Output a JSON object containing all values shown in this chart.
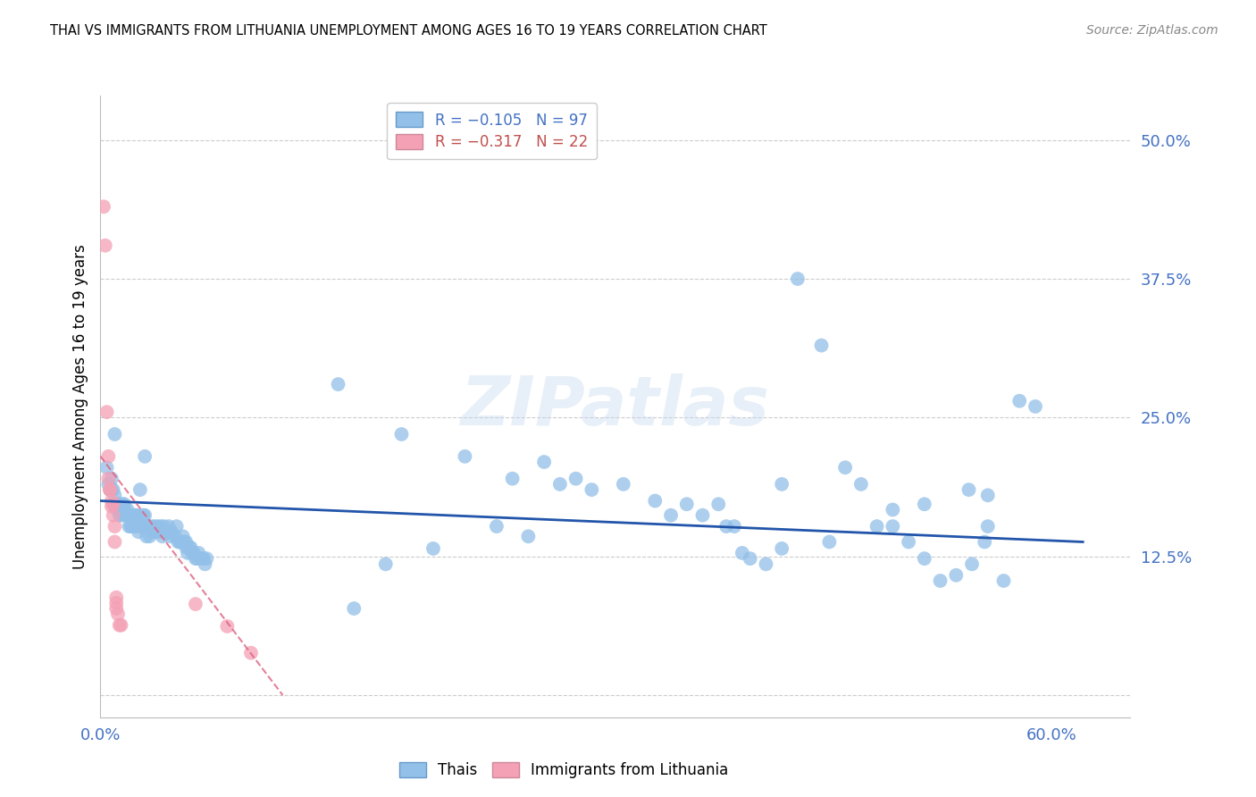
{
  "title": "THAI VS IMMIGRANTS FROM LITHUANIA UNEMPLOYMENT AMONG AGES 16 TO 19 YEARS CORRELATION CHART",
  "source": "Source: ZipAtlas.com",
  "ylabel_label": "Unemployment Among Ages 16 to 19 years",
  "xlim": [
    0.0,
    0.65
  ],
  "ylim": [
    -0.02,
    0.54
  ],
  "ytick_positions": [
    0.0,
    0.125,
    0.25,
    0.375,
    0.5
  ],
  "ytick_labels": [
    "",
    "12.5%",
    "25.0%",
    "37.5%",
    "50.0%"
  ],
  "xtick_positions": [
    0.0,
    0.6
  ],
  "xtick_labels": [
    "0.0%",
    "60.0%"
  ],
  "thai_color": "#92c0e8",
  "lith_color": "#f4a0b5",
  "trend_thai_color": "#2255aa",
  "trend_lith_color": "#e06080",
  "tick_color": "#4472c4",
  "watermark": "ZIPatlas",
  "thai_points": [
    [
      0.004,
      0.205
    ],
    [
      0.005,
      0.19
    ],
    [
      0.006,
      0.185
    ],
    [
      0.007,
      0.185
    ],
    [
      0.007,
      0.195
    ],
    [
      0.008,
      0.185
    ],
    [
      0.009,
      0.18
    ],
    [
      0.009,
      0.17
    ],
    [
      0.01,
      0.168
    ],
    [
      0.011,
      0.172
    ],
    [
      0.012,
      0.172
    ],
    [
      0.012,
      0.162
    ],
    [
      0.013,
      0.162
    ],
    [
      0.014,
      0.167
    ],
    [
      0.014,
      0.172
    ],
    [
      0.015,
      0.167
    ],
    [
      0.015,
      0.172
    ],
    [
      0.016,
      0.162
    ],
    [
      0.017,
      0.162
    ],
    [
      0.017,
      0.167
    ],
    [
      0.018,
      0.152
    ],
    [
      0.019,
      0.152
    ],
    [
      0.019,
      0.162
    ],
    [
      0.02,
      0.162
    ],
    [
      0.02,
      0.152
    ],
    [
      0.021,
      0.152
    ],
    [
      0.021,
      0.162
    ],
    [
      0.022,
      0.152
    ],
    [
      0.022,
      0.162
    ],
    [
      0.023,
      0.162
    ],
    [
      0.023,
      0.152
    ],
    [
      0.024,
      0.147
    ],
    [
      0.026,
      0.152
    ],
    [
      0.027,
      0.152
    ],
    [
      0.027,
      0.162
    ],
    [
      0.028,
      0.162
    ],
    [
      0.029,
      0.143
    ],
    [
      0.03,
      0.152
    ],
    [
      0.031,
      0.143
    ],
    [
      0.032,
      0.152
    ],
    [
      0.033,
      0.147
    ],
    [
      0.034,
      0.152
    ],
    [
      0.035,
      0.147
    ],
    [
      0.036,
      0.152
    ],
    [
      0.037,
      0.147
    ],
    [
      0.038,
      0.152
    ],
    [
      0.039,
      0.143
    ],
    [
      0.04,
      0.152
    ],
    [
      0.041,
      0.147
    ],
    [
      0.042,
      0.147
    ],
    [
      0.043,
      0.152
    ],
    [
      0.044,
      0.143
    ],
    [
      0.045,
      0.147
    ],
    [
      0.047,
      0.143
    ],
    [
      0.048,
      0.152
    ],
    [
      0.049,
      0.138
    ],
    [
      0.05,
      0.138
    ],
    [
      0.051,
      0.138
    ],
    [
      0.052,
      0.143
    ],
    [
      0.053,
      0.138
    ],
    [
      0.054,
      0.133
    ],
    [
      0.054,
      0.138
    ],
    [
      0.055,
      0.128
    ],
    [
      0.056,
      0.133
    ],
    [
      0.057,
      0.133
    ],
    [
      0.058,
      0.128
    ],
    [
      0.059,
      0.128
    ],
    [
      0.06,
      0.123
    ],
    [
      0.061,
      0.123
    ],
    [
      0.062,
      0.128
    ],
    [
      0.064,
      0.123
    ],
    [
      0.065,
      0.123
    ],
    [
      0.066,
      0.118
    ],
    [
      0.067,
      0.123
    ],
    [
      0.009,
      0.235
    ],
    [
      0.15,
      0.28
    ],
    [
      0.19,
      0.235
    ],
    [
      0.23,
      0.215
    ],
    [
      0.26,
      0.195
    ],
    [
      0.28,
      0.21
    ],
    [
      0.29,
      0.19
    ],
    [
      0.3,
      0.195
    ],
    [
      0.31,
      0.185
    ],
    [
      0.33,
      0.19
    ],
    [
      0.35,
      0.175
    ],
    [
      0.36,
      0.162
    ],
    [
      0.37,
      0.172
    ],
    [
      0.38,
      0.162
    ],
    [
      0.39,
      0.172
    ],
    [
      0.395,
      0.152
    ],
    [
      0.4,
      0.152
    ],
    [
      0.405,
      0.128
    ],
    [
      0.41,
      0.123
    ],
    [
      0.44,
      0.375
    ],
    [
      0.455,
      0.315
    ],
    [
      0.49,
      0.152
    ],
    [
      0.5,
      0.167
    ],
    [
      0.51,
      0.138
    ],
    [
      0.52,
      0.123
    ],
    [
      0.53,
      0.103
    ],
    [
      0.54,
      0.108
    ],
    [
      0.55,
      0.118
    ],
    [
      0.558,
      0.138
    ],
    [
      0.56,
      0.152
    ],
    [
      0.57,
      0.103
    ],
    [
      0.58,
      0.265
    ],
    [
      0.59,
      0.26
    ],
    [
      0.47,
      0.205
    ],
    [
      0.48,
      0.19
    ],
    [
      0.43,
      0.19
    ],
    [
      0.548,
      0.185
    ],
    [
      0.56,
      0.18
    ],
    [
      0.52,
      0.172
    ],
    [
      0.5,
      0.152
    ],
    [
      0.46,
      0.138
    ],
    [
      0.43,
      0.132
    ],
    [
      0.42,
      0.118
    ],
    [
      0.25,
      0.152
    ],
    [
      0.27,
      0.143
    ],
    [
      0.21,
      0.132
    ],
    [
      0.18,
      0.118
    ],
    [
      0.16,
      0.078
    ],
    [
      0.025,
      0.185
    ],
    [
      0.028,
      0.215
    ]
  ],
  "lith_points": [
    [
      0.002,
      0.44
    ],
    [
      0.003,
      0.405
    ],
    [
      0.004,
      0.255
    ],
    [
      0.005,
      0.215
    ],
    [
      0.005,
      0.195
    ],
    [
      0.006,
      0.185
    ],
    [
      0.006,
      0.185
    ],
    [
      0.007,
      0.175
    ],
    [
      0.007,
      0.17
    ],
    [
      0.008,
      0.162
    ],
    [
      0.008,
      0.172
    ],
    [
      0.009,
      0.152
    ],
    [
      0.009,
      0.138
    ],
    [
      0.01,
      0.088
    ],
    [
      0.01,
      0.083
    ],
    [
      0.01,
      0.078
    ],
    [
      0.011,
      0.073
    ],
    [
      0.012,
      0.063
    ],
    [
      0.013,
      0.063
    ],
    [
      0.06,
      0.082
    ],
    [
      0.08,
      0.062
    ],
    [
      0.095,
      0.038
    ]
  ],
  "thai_trend_x": [
    0.0,
    0.62
  ],
  "thai_trend_y": [
    0.175,
    0.138
  ],
  "lith_trend_x": [
    0.0,
    0.115
  ],
  "lith_trend_y": [
    0.215,
    0.0
  ]
}
